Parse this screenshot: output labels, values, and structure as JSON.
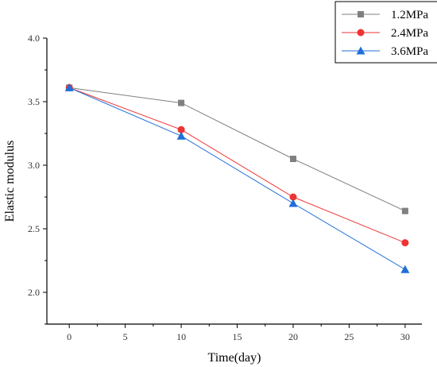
{
  "chart_data": {
    "type": "line",
    "title": "",
    "xlabel": "Time(day)",
    "ylabel": "Elastic modulus",
    "xlim": [
      -2,
      31.5
    ],
    "ylim": [
      1.75,
      4.0
    ],
    "x_ticks": [
      0,
      5,
      10,
      15,
      20,
      25,
      30
    ],
    "x_tick_labels": [
      "0",
      "5",
      "10",
      "15",
      "20",
      "25",
      "30"
    ],
    "y_ticks": [
      2.0,
      2.5,
      3.0,
      3.5,
      4.0
    ],
    "y_tick_labels": [
      "2.0",
      "2.5",
      "3.0",
      "3.5",
      "4.0"
    ],
    "grid": false,
    "legend_position": "top-right",
    "x": [
      0,
      10,
      20,
      30
    ],
    "series": [
      {
        "name": "1.2MPa",
        "values": [
          3.61,
          3.49,
          3.05,
          2.64
        ],
        "color": "#808080",
        "marker": "square"
      },
      {
        "name": "2.4MPa",
        "values": [
          3.61,
          3.28,
          2.75,
          2.39
        ],
        "color": "#ee3333",
        "marker": "circle"
      },
      {
        "name": "3.6MPa",
        "values": [
          3.61,
          3.23,
          2.7,
          2.18
        ],
        "color": "#1f6fd8",
        "marker": "triangle"
      }
    ]
  }
}
